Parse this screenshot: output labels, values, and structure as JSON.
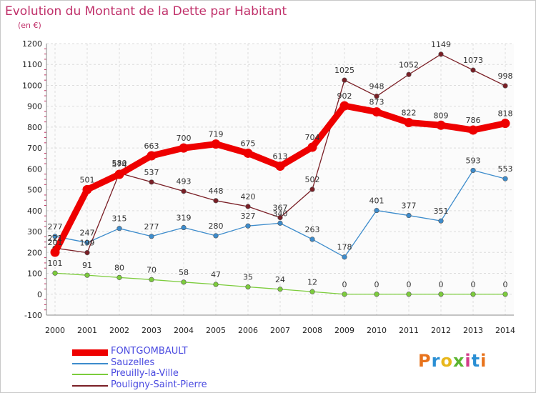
{
  "title": "Evolution du Montant de la Dette par Habitant",
  "unit": "(en €)",
  "logo": {
    "text": "Proxiti",
    "colors": [
      "#e8731c",
      "#2a8fd4",
      "#e8b71c",
      "#5bb531",
      "#d43c8a",
      "#2a8fd4",
      "#e8731c"
    ]
  },
  "chart_data": {
    "type": "line",
    "x": [
      "2000",
      "2001",
      "2002",
      "2003",
      "2004",
      "2005",
      "2006",
      "2007",
      "2008",
      "2009",
      "2010",
      "2011",
      "2012",
      "2013",
      "2014"
    ],
    "ylim": [
      -100,
      1200
    ],
    "yticks": [
      -100,
      0,
      100,
      200,
      300,
      400,
      500,
      600,
      700,
      800,
      900,
      1000,
      1100,
      1200
    ],
    "grid": true,
    "legend_position": "bottom-left",
    "series": [
      {
        "name": "FONTGOMBAULT",
        "color": "#ee0000",
        "values": [
          201,
          501,
          574,
          663,
          700,
          719,
          675,
          613,
          704,
          902,
          873,
          822,
          809,
          786,
          818
        ]
      },
      {
        "name": "Sauzelles",
        "color": "#3d8ccc",
        "values": [
          277,
          247,
          315,
          277,
          319,
          280,
          327,
          340,
          263,
          178,
          401,
          377,
          351,
          593,
          553
        ]
      },
      {
        "name": "Preuilly-la-Ville",
        "color": "#7ccc3c",
        "values": [
          101,
          91,
          80,
          70,
          58,
          47,
          35,
          24,
          12,
          0,
          0,
          0,
          0,
          0,
          0
        ]
      },
      {
        "name": "Pouligny-Saint-Pierre",
        "color": "#7a1f26",
        "values": [
          221,
          199,
          580,
          537,
          493,
          448,
          420,
          367,
          502,
          1025,
          948,
          1052,
          1149,
          1073,
          998
        ]
      }
    ]
  }
}
